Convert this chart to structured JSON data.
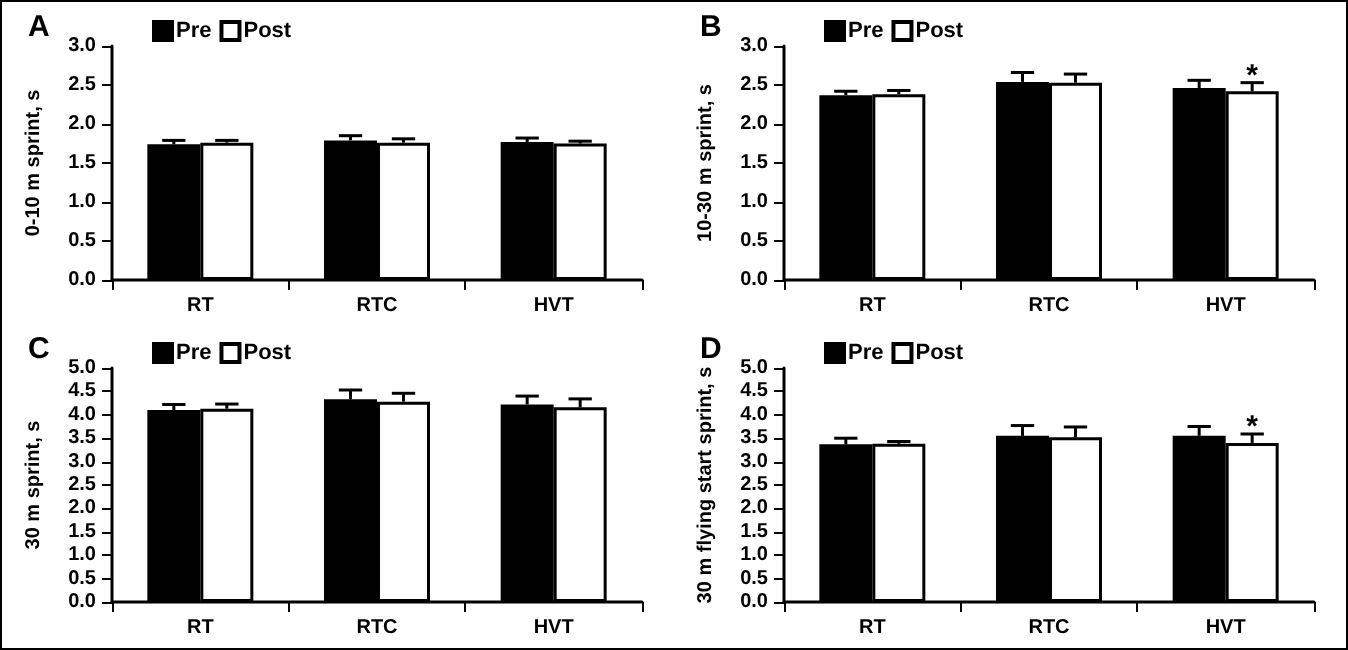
{
  "chart_data": [
    {
      "type": "bar",
      "title": "A",
      "ylabel": "0-10 m sprint, s",
      "categories": [
        "RT",
        "RTC",
        "HVT"
      ],
      "legend": "top left",
      "grid": false,
      "series": [
        {
          "name": "Pre",
          "color": "#000000",
          "values": [
            1.74,
            1.79,
            1.77
          ],
          "errors": [
            [
              1.74,
              1.79
            ],
            [
              1.79,
              1.85
            ],
            [
              1.77,
              1.82
            ]
          ]
        },
        {
          "name": "Post",
          "color": "#ffffff",
          "values": [
            1.76,
            1.76,
            1.75
          ],
          "errors": [
            [
              1.76,
              1.79
            ],
            [
              1.76,
              1.81
            ],
            [
              1.75,
              1.78
            ]
          ]
        }
      ],
      "ylim": [
        0,
        3
      ],
      "yticks": [
        {
          "value": 0,
          "label": "0.0"
        },
        {
          "value": 0.5,
          "label": "0.5"
        },
        {
          "value": 1,
          "label": "1.0"
        },
        {
          "value": 1.5,
          "label": "1.5"
        },
        {
          "value": 2,
          "label": "2.0"
        },
        {
          "value": 2.5,
          "label": "2.5"
        },
        {
          "value": 3,
          "label": "3.0"
        }
      ]
    },
    {
      "type": "bar",
      "title": "B",
      "ylabel": "10-30 m sprint, s",
      "categories": [
        "RT",
        "RTC",
        "HVT"
      ],
      "legend": "top left",
      "grid": false,
      "series": [
        {
          "name": "Pre",
          "color": "#000000",
          "values": [
            2.37,
            2.54,
            2.46
          ],
          "errors": [
            [
              2.37,
              2.42
            ],
            [
              2.54,
              2.66
            ],
            [
              2.46,
              2.56
            ]
          ]
        },
        {
          "name": "Post",
          "color": "#ffffff",
          "values": [
            2.38,
            2.53,
            2.42
          ],
          "errors": [
            [
              2.38,
              2.43
            ],
            [
              2.53,
              2.64
            ],
            [
              2.42,
              2.53
            ]
          ]
        }
      ],
      "ylim": [
        0,
        3
      ],
      "yticks": [
        {
          "value": 0,
          "label": "0.0"
        },
        {
          "value": 0.5,
          "label": "0.5"
        },
        {
          "value": 1,
          "label": "1.0"
        },
        {
          "value": 1.5,
          "label": "1.5"
        },
        {
          "value": 2,
          "label": "2.0"
        },
        {
          "value": 2.5,
          "label": "2.5"
        },
        {
          "value": 3,
          "label": "3.0"
        }
      ],
      "annotations": [
        {
          "text": "*",
          "x": "HVT",
          "y": 2.53
        }
      ]
    },
    {
      "type": "bar",
      "title": "C",
      "ylabel": "30 m sprint, s",
      "categories": [
        "RT",
        "RTC",
        "HVT"
      ],
      "legend": "top left",
      "grid": false,
      "series": [
        {
          "name": "Pre",
          "color": "#000000",
          "values": [
            4.1,
            4.33,
            4.22
          ],
          "errors": [
            [
              4.1,
              4.22
            ],
            [
              4.33,
              4.53
            ],
            [
              4.22,
              4.4
            ]
          ]
        },
        {
          "name": "Post",
          "color": "#ffffff",
          "values": [
            4.13,
            4.28,
            4.16
          ],
          "errors": [
            [
              4.13,
              4.23
            ],
            [
              4.28,
              4.46
            ],
            [
              4.16,
              4.34
            ]
          ]
        }
      ],
      "ylim": [
        0,
        5
      ],
      "yticks": [
        {
          "value": 0,
          "label": "0.0"
        },
        {
          "value": 0.5,
          "label": "0.5"
        },
        {
          "value": 1,
          "label": "1.0"
        },
        {
          "value": 1.5,
          "label": "1.5"
        },
        {
          "value": 2,
          "label": "2.0"
        },
        {
          "value": 2.5,
          "label": "2.5"
        },
        {
          "value": 3,
          "label": "3.0"
        },
        {
          "value": 3.5,
          "label": "3.5"
        },
        {
          "value": 4,
          "label": "4.0"
        },
        {
          "value": 4.5,
          "label": "4.5"
        },
        {
          "value": 5,
          "label": "5.0"
        }
      ]
    },
    {
      "type": "bar",
      "title": "D",
      "ylabel": "30 m flying start sprint, s",
      "categories": [
        "RT",
        "RTC",
        "HVT"
      ],
      "legend": "top left",
      "grid": false,
      "series": [
        {
          "name": "Pre",
          "color": "#000000",
          "values": [
            3.37,
            3.55,
            3.55
          ],
          "errors": [
            [
              3.37,
              3.5
            ],
            [
              3.55,
              3.77
            ],
            [
              3.55,
              3.75
            ]
          ]
        },
        {
          "name": "Post",
          "color": "#ffffff",
          "values": [
            3.38,
            3.52,
            3.4
          ],
          "errors": [
            [
              3.38,
              3.43
            ],
            [
              3.52,
              3.74
            ],
            [
              3.4,
              3.59
            ]
          ]
        }
      ],
      "ylim": [
        0,
        5
      ],
      "yticks": [
        {
          "value": 0,
          "label": "0.0"
        },
        {
          "value": 0.5,
          "label": "0.5"
        },
        {
          "value": 1,
          "label": "1.0"
        },
        {
          "value": 1.5,
          "label": "1.5"
        },
        {
          "value": 2,
          "label": "2.0"
        },
        {
          "value": 2.5,
          "label": "2.5"
        },
        {
          "value": 3,
          "label": "3.0"
        },
        {
          "value": 3.5,
          "label": "3.5"
        },
        {
          "value": 4,
          "label": "4.0"
        },
        {
          "value": 4.5,
          "label": "4.5"
        },
        {
          "value": 5,
          "label": "5.0"
        }
      ],
      "annotations": [
        {
          "text": "*",
          "x": "HVT",
          "y": 3.59
        }
      ]
    }
  ]
}
